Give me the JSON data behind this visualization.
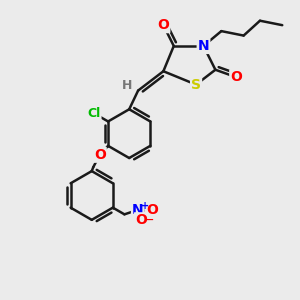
{
  "bg_color": "#ebebeb",
  "bond_color": "#1a1a1a",
  "bond_width": 1.8,
  "atom_colors": {
    "O": "#ff0000",
    "N_blue": "#0000ff",
    "N_red": "#ff0000",
    "S": "#cccc00",
    "Cl": "#00bb00",
    "H": "#777777",
    "C": "#1a1a1a"
  },
  "font_size": 9
}
